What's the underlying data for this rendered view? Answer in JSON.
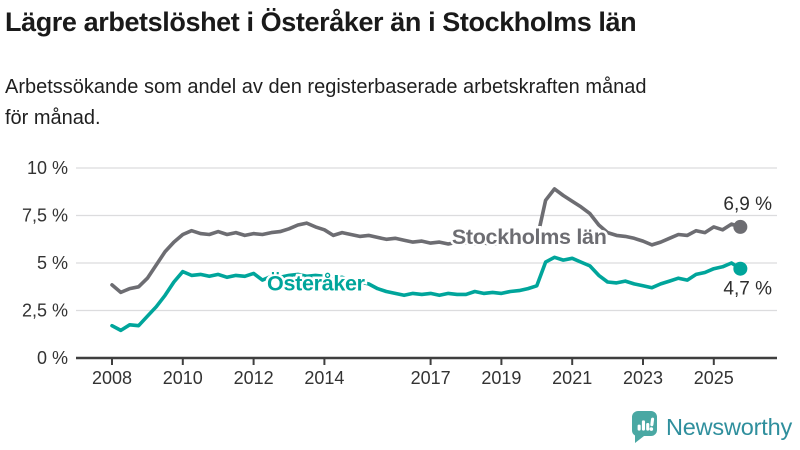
{
  "header": {
    "title": "Lägre arbetslöshet i Österåker än i Stockholms län",
    "subtitle": "Arbetssökande som andel av den registerbaserade arbetskraften månad\nför månad."
  },
  "chart_data": {
    "type": "line",
    "title": "Lägre arbetslöshet i Österåker än i Stockholms län",
    "subtitle": "Arbetssökande som andel av den registerbaserade arbetskraften månad för månad.",
    "x_unit": "year (monthly share of registered labour force, sampled quarterly)",
    "ylim": [
      0,
      10
    ],
    "grid": "horizontal",
    "legend": "inline-labels",
    "y_ticks": [
      {
        "value": 10,
        "label": "10 %"
      },
      {
        "value": 7.5,
        "label": "7,5 %"
      },
      {
        "value": 5,
        "label": "5 %"
      },
      {
        "value": 2.5,
        "label": "2,5 %"
      },
      {
        "value": 0,
        "label": "0 %"
      }
    ],
    "x_ticks": [
      {
        "value": 2008,
        "label": "2008"
      },
      {
        "value": 2010,
        "label": "2010"
      },
      {
        "value": 2012,
        "label": "2012"
      },
      {
        "value": 2014,
        "label": "2014"
      },
      {
        "value": 2017,
        "label": "2017"
      },
      {
        "value": 2019,
        "label": "2019"
      },
      {
        "value": 2021,
        "label": "2021"
      },
      {
        "value": 2023,
        "label": "2023"
      },
      {
        "value": 2025,
        "label": "2025"
      }
    ],
    "x": [
      2008,
      2008.25,
      2008.5,
      2008.75,
      2009,
      2009.25,
      2009.5,
      2009.75,
      2010,
      2010.25,
      2010.5,
      2010.75,
      2011,
      2011.25,
      2011.5,
      2011.75,
      2012,
      2012.25,
      2012.5,
      2012.75,
      2013,
      2013.25,
      2013.5,
      2013.75,
      2014,
      2014.25,
      2014.5,
      2014.75,
      2015,
      2015.25,
      2015.5,
      2015.75,
      2016,
      2016.25,
      2016.5,
      2016.75,
      2017,
      2017.25,
      2017.5,
      2017.75,
      2018,
      2018.25,
      2018.5,
      2018.75,
      2019,
      2019.25,
      2019.5,
      2019.75,
      2020,
      2020.25,
      2020.5,
      2020.75,
      2021,
      2021.25,
      2021.5,
      2021.75,
      2022,
      2022.25,
      2022.5,
      2022.75,
      2023,
      2023.25,
      2023.5,
      2023.75,
      2024,
      2024.25,
      2024.5,
      2024.75,
      2025,
      2025.25,
      2025.5,
      2025.75
    ],
    "series": [
      {
        "name": "Stockholms län",
        "color": "#6d6d72",
        "end_value": 6.9,
        "end_label": "6,9 %",
        "end_label_side": "above",
        "label_at": {
          "x": 2017.6,
          "y": 6.0
        },
        "values": [
          3.85,
          3.45,
          3.65,
          3.75,
          4.2,
          4.9,
          5.6,
          6.1,
          6.5,
          6.7,
          6.55,
          6.5,
          6.65,
          6.5,
          6.6,
          6.45,
          6.55,
          6.5,
          6.6,
          6.65,
          6.8,
          7.0,
          7.1,
          6.9,
          6.75,
          6.45,
          6.6,
          6.5,
          6.4,
          6.45,
          6.35,
          6.25,
          6.3,
          6.2,
          6.1,
          6.15,
          6.05,
          6.1,
          6.0,
          6.1,
          6.05,
          6.0,
          6.05,
          6.0,
          6.0,
          6.05,
          6.1,
          6.15,
          6.2,
          8.3,
          8.9,
          8.55,
          8.25,
          7.95,
          7.6,
          7.0,
          6.6,
          6.45,
          6.4,
          6.3,
          6.15,
          5.95,
          6.1,
          6.3,
          6.5,
          6.45,
          6.7,
          6.6,
          6.9,
          6.75,
          7.05,
          6.9
        ]
      },
      {
        "name": "Österåker",
        "color": "#00a59b",
        "end_value": 4.7,
        "end_label": "4,7 %",
        "end_label_side": "below",
        "label_at": {
          "x": 2012.38,
          "y": 3.55
        },
        "values": [
          1.7,
          1.45,
          1.75,
          1.7,
          2.2,
          2.7,
          3.3,
          4.0,
          4.55,
          4.35,
          4.4,
          4.3,
          4.4,
          4.25,
          4.35,
          4.3,
          4.45,
          4.1,
          4.3,
          4.25,
          4.35,
          4.4,
          4.3,
          4.35,
          4.3,
          4.2,
          4.25,
          4.1,
          4.0,
          3.9,
          3.65,
          3.5,
          3.4,
          3.3,
          3.4,
          3.35,
          3.4,
          3.3,
          3.4,
          3.35,
          3.35,
          3.5,
          3.4,
          3.45,
          3.4,
          3.5,
          3.55,
          3.65,
          3.8,
          5.05,
          5.3,
          5.15,
          5.25,
          5.05,
          4.85,
          4.35,
          4.0,
          3.95,
          4.05,
          3.9,
          3.8,
          3.7,
          3.9,
          4.05,
          4.2,
          4.1,
          4.4,
          4.5,
          4.7,
          4.8,
          5.0,
          4.7
        ]
      }
    ],
    "colors": {
      "grid": "#dcdcde",
      "axis": "#3f3f3f",
      "tick_label": "#333333",
      "annotation": "#2d2d2d"
    }
  },
  "footer": {
    "brand": "Newsworthy",
    "brand_color": "#2f8f9d",
    "icon_color": "#4aa8a3"
  }
}
